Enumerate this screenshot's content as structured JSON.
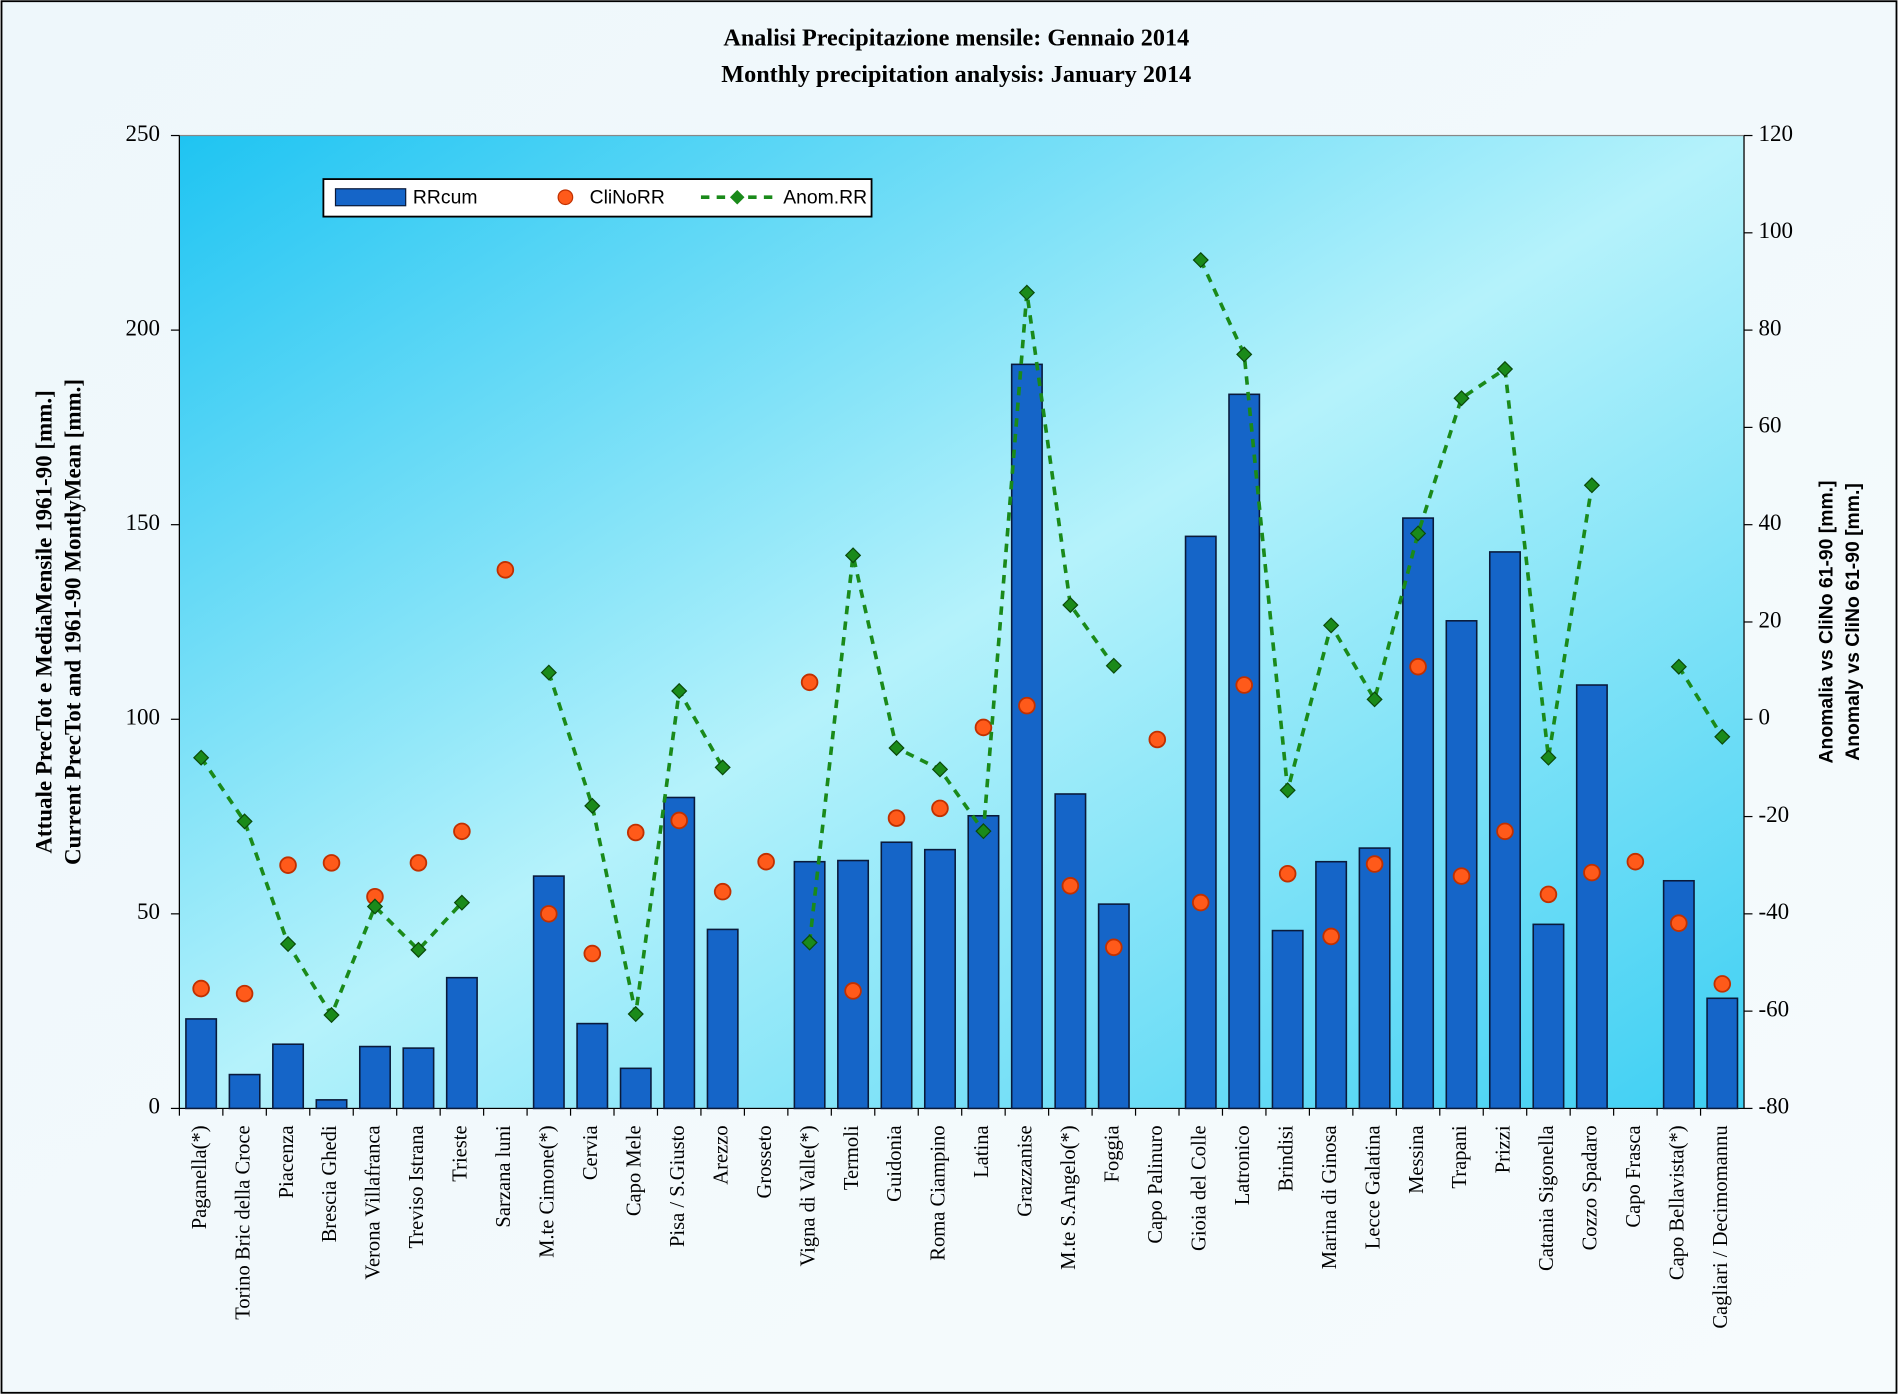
{
  "chart_data": {
    "type": "bar",
    "title": "Analisi Precipitazione mensile: Gennaio 2014",
    "subtitle": "Monthly precipitation analysis: January 2014",
    "y_label": [
      "Attuale PrecTot e MediaMensile 1961-90 [mm.]",
      "Current PrecTot and 1961-90 MontlyMean [mm.]"
    ],
    "y2_label": [
      "Anomalia vs CliNo 61-90 [mm.]",
      "Anomaly vs CliNo 61-90 [mm.]"
    ],
    "categories": [
      "Paganella(*)",
      "Torino Bric della Croce",
      "Piacenza",
      "Brescia Ghedi",
      "Verona Villafranca",
      "Treviso Istrana",
      "Trieste",
      "Sarzana luni",
      "M.te Cimone(*)",
      "Cervia",
      "Capo Mele",
      "Pisa / S.Giusto",
      "Arezzo",
      "Grosseto",
      "Vigna di Valle(*)",
      "Termoli",
      "Guidonia",
      "Roma Ciampino",
      "Latina",
      "Grazzanise",
      "M.te S.Angelo(*)",
      "Foggia",
      "Capo Palinuro",
      "Gioia del Colle",
      "Latronico",
      "Brindisi",
      "Marina di Ginosa",
      "Lecce Galatina",
      "Messina",
      "Trapani",
      "Prizzi",
      "Catania Sigonella",
      "Cozzo Spadaro",
      "Capo Frasca",
      "Capo Bellavista(*)",
      "Cagliari / Decimomannu"
    ],
    "series": [
      {
        "name": "RRcum",
        "type": "bar",
        "color": "#1565c8",
        "values": [
          23,
          8.7,
          16.5,
          2.2,
          15.9,
          15.5,
          33.6,
          null,
          59.7,
          21.8,
          10.3,
          79.9,
          46,
          null,
          63.4,
          63.7,
          68.4,
          66.5,
          75.2,
          191.2,
          80.8,
          52.5,
          null,
          147,
          183.5,
          45.7,
          63.4,
          66.9,
          151.7,
          125.3,
          143,
          47.3,
          108.8,
          null,
          58.5,
          28.3
        ]
      },
      {
        "name": "CliNoRR",
        "type": "scatter",
        "color": "#ff5a1a",
        "values": [
          30.8,
          29.5,
          62.5,
          63.1,
          54.4,
          63.1,
          71.2,
          138.4,
          50,
          39.8,
          70.9,
          74,
          55.7,
          63.4,
          109.5,
          30.2,
          74.6,
          77.1,
          97.9,
          103.5,
          57.2,
          41.4,
          94.8,
          52.9,
          108.8,
          60.3,
          44.2,
          62.8,
          113.5,
          59.7,
          71.2,
          55,
          60.6,
          63.4,
          47.6,
          32
        ]
      },
      {
        "name": "Anom.RR",
        "type": "line",
        "axis": "y2",
        "color": "#1a8a1a",
        "values": [
          -7.9,
          -21,
          -46.2,
          -60.8,
          -38.5,
          -47.4,
          -37.7,
          null,
          9.6,
          -17.8,
          -60.6,
          5.8,
          -9.9,
          null,
          -45.9,
          33.7,
          -5.9,
          -10.3,
          -23,
          87.7,
          23.5,
          11,
          null,
          94.4,
          75,
          -14.6,
          19.3,
          4.1,
          38.2,
          66,
          72,
          -7.9,
          48.1,
          null,
          10.8,
          -3.6
        ]
      }
    ],
    "ylim": [
      0,
      250
    ],
    "yticks": [
      0,
      50,
      100,
      150,
      200,
      250
    ],
    "y2lim": [
      -80,
      120
    ],
    "y2ticks": [
      -80,
      -60,
      -40,
      -20,
      0,
      20,
      40,
      60,
      80,
      100,
      120
    ],
    "legend": "top-left"
  }
}
